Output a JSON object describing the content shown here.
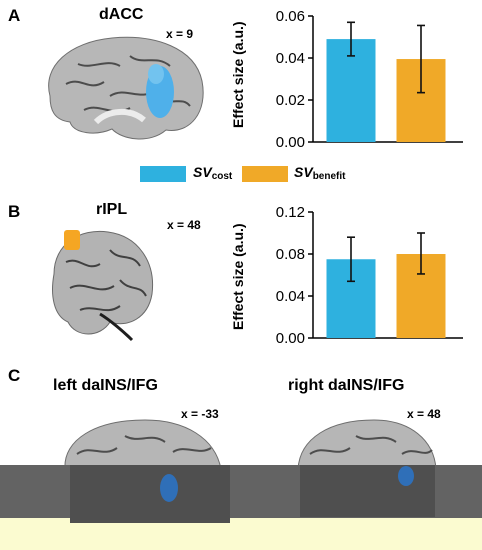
{
  "panels": {
    "A": {
      "letter": "A",
      "region": "dACC",
      "slice": "x = 9"
    },
    "B": {
      "letter": "B",
      "region": "rIPL",
      "slice": "x = 48"
    },
    "C": {
      "letter": "C",
      "left": {
        "region": "left daINS/IFG",
        "slice": "x = -33"
      },
      "right": {
        "region": "right daINS/IFG",
        "slice": "x = 48"
      }
    }
  },
  "legend": {
    "cost": {
      "label": "SV",
      "sub": "cost",
      "color": "#2eb1df"
    },
    "benefit": {
      "label": "SV",
      "sub": "benefit",
      "color": "#f0a928"
    }
  },
  "colors": {
    "cost": "#2eb1df",
    "benefit": "#f0a928",
    "activation_blue": "#2f6fb8",
    "activation_orange": "#f3a121"
  },
  "chart_data": [
    {
      "type": "bar",
      "panel": "A",
      "categories": [
        "SVcost",
        "SVbenefit"
      ],
      "values": [
        0.049,
        0.0395
      ],
      "error_low": [
        0.041,
        0.0235
      ],
      "error_high": [
        0.057,
        0.0555
      ],
      "ylabel": "Effect size (a.u.)",
      "ylim": [
        0,
        0.06
      ],
      "yticks": [
        "0.00",
        "0.02",
        "0.04",
        "0.06"
      ],
      "grid": false
    },
    {
      "type": "bar",
      "panel": "B",
      "categories": [
        "SVcost",
        "SVbenefit"
      ],
      "values": [
        0.075,
        0.08
      ],
      "error_low": [
        0.054,
        0.061
      ],
      "error_high": [
        0.096,
        0.1
      ],
      "ylabel": "Effect size (a.u.)",
      "ylim": [
        0,
        0.12
      ],
      "yticks": [
        "0.00",
        "0.04",
        "0.08",
        "0.12"
      ],
      "grid": false
    }
  ]
}
